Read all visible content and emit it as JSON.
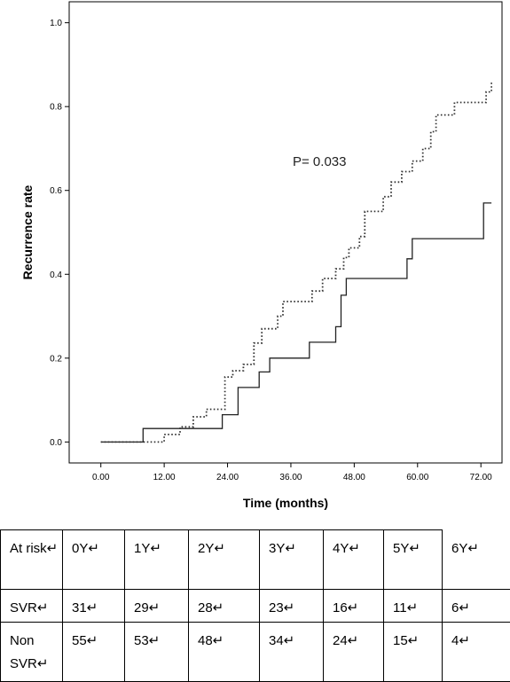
{
  "chart_data": {
    "type": "line",
    "title": "",
    "xlabel": "Time (months)",
    "ylabel": "Recurrence rate",
    "xlim": [
      -6,
      76
    ],
    "ylim": [
      -0.05,
      1.05
    ],
    "x_ticks": [
      "0.00",
      "12.00",
      "24.00",
      "36.00",
      "48.00",
      "60.00",
      "72.00"
    ],
    "x_tick_values": [
      0,
      12,
      24,
      36,
      48,
      60,
      72
    ],
    "y_ticks": [
      "0.0",
      "0.2",
      "0.4",
      "0.6",
      "0.8",
      "1.0"
    ],
    "y_tick_values": [
      0,
      0.2,
      0.4,
      0.6,
      0.8,
      1.0
    ],
    "grid": false,
    "annotation": "P= 0.033",
    "series": [
      {
        "style": "solid",
        "steps": [
          [
            0,
            0
          ],
          [
            8,
            0.032
          ],
          [
            23,
            0.065
          ],
          [
            26,
            0.13
          ],
          [
            30,
            0.167
          ],
          [
            32,
            0.2
          ],
          [
            39.5,
            0.238
          ],
          [
            44.5,
            0.275
          ],
          [
            45.5,
            0.35
          ],
          [
            46.5,
            0.39
          ],
          [
            58,
            0.437
          ],
          [
            59,
            0.485
          ],
          [
            72.5,
            0.57
          ],
          [
            74,
            0.57
          ]
        ]
      },
      {
        "style": "dotted",
        "steps": [
          [
            0,
            0
          ],
          [
            10.5,
            0
          ],
          [
            12,
            0.018
          ],
          [
            15,
            0.036
          ],
          [
            17.5,
            0.06
          ],
          [
            20,
            0.078
          ],
          [
            23.5,
            0.155
          ],
          [
            25,
            0.17
          ],
          [
            27,
            0.185
          ],
          [
            29,
            0.236
          ],
          [
            30.5,
            0.27
          ],
          [
            33.5,
            0.3
          ],
          [
            34.5,
            0.335
          ],
          [
            40,
            0.36
          ],
          [
            42,
            0.39
          ],
          [
            44.5,
            0.413
          ],
          [
            46,
            0.44
          ],
          [
            47,
            0.463
          ],
          [
            49,
            0.49
          ],
          [
            50,
            0.55
          ],
          [
            53.5,
            0.585
          ],
          [
            55,
            0.62
          ],
          [
            57,
            0.645
          ],
          [
            59,
            0.67
          ],
          [
            61,
            0.7
          ],
          [
            62.5,
            0.74
          ],
          [
            63.5,
            0.78
          ],
          [
            67,
            0.81
          ],
          [
            73,
            0.835
          ],
          [
            74,
            0.86
          ]
        ]
      }
    ]
  },
  "risk_table": {
    "header": [
      "At risk↵",
      "0Y↵",
      "1Y↵",
      "2Y↵",
      "3Y↵",
      "4Y↵",
      "5Y↵",
      "6Y↵"
    ],
    "rows": [
      [
        "SVR↵",
        "31↵",
        "29↵",
        "28↵",
        "23↵",
        "16↵",
        "11↵",
        "6↵"
      ],
      [
        "Non SVR↵",
        "55↵",
        "53↵",
        "48↵",
        "34↵",
        "24↵",
        "15↵",
        "4↵"
      ]
    ],
    "trailing_mark": "↵"
  }
}
